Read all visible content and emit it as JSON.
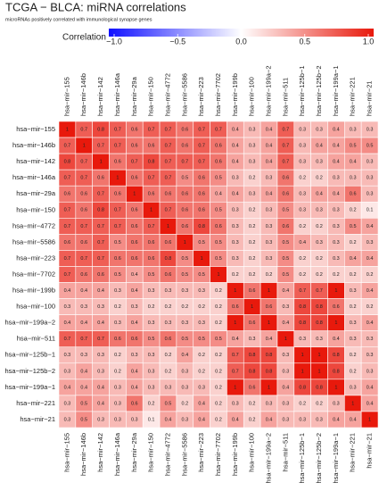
{
  "chart_data": {
    "type": "heatmap",
    "title": "TCGA − BLCA: miRNA correlations",
    "subtitle": "microRNAs positively correlated with immunological synapse genes",
    "legend_title": "Correlation",
    "colorscale": [
      "#1010ff",
      "#ffffff",
      "#e8190c"
    ],
    "clim": [
      -1,
      1
    ],
    "cticks": [
      {
        "value": -1,
        "label": "−1.0"
      },
      {
        "value": -0.5,
        "label": "−0.5"
      },
      {
        "value": 0,
        "label": "0.0"
      },
      {
        "value": 0.5,
        "label": "0.5"
      },
      {
        "value": 1,
        "label": "1.0"
      }
    ],
    "categories": [
      "hsa−mir−155",
      "hsa−mir−146b",
      "hsa−mir−142",
      "hsa−mir−146a",
      "hsa−mir−29a",
      "hsa−mir−150",
      "hsa−mir−4772",
      "hsa−mir−5586",
      "hsa−mir−223",
      "hsa−mir−7702",
      "hsa−mir−199b",
      "hsa−mir−100",
      "hsa−mir−199a−2",
      "hsa−mir−511",
      "hsa−mir−125b−1",
      "hsa−mir−125b−2",
      "hsa−mir−199a−1",
      "hsa−mir−221",
      "hsa−mir−21"
    ],
    "values": [
      [
        1,
        0.7,
        0.8,
        0.7,
        0.6,
        0.7,
        0.7,
        0.6,
        0.7,
        0.7,
        0.4,
        0.3,
        0.4,
        0.7,
        0.3,
        0.3,
        0.4,
        0.3,
        0.3
      ],
      [
        0.7,
        1,
        0.7,
        0.7,
        0.6,
        0.6,
        0.7,
        0.6,
        0.7,
        0.6,
        0.4,
        0.3,
        0.4,
        0.7,
        0.3,
        0.4,
        0.4,
        0.5,
        0.5
      ],
      [
        0.8,
        0.7,
        1,
        0.6,
        0.7,
        0.8,
        0.7,
        0.7,
        0.7,
        0.6,
        0.4,
        0.3,
        0.4,
        0.7,
        0.3,
        0.3,
        0.4,
        0.4,
        0.3
      ],
      [
        0.7,
        0.7,
        0.6,
        1,
        0.6,
        0.7,
        0.7,
        0.5,
        0.6,
        0.5,
        0.3,
        0.2,
        0.3,
        0.6,
        0.2,
        0.2,
        0.3,
        0.3,
        0.3
      ],
      [
        0.6,
        0.6,
        0.7,
        0.6,
        1,
        0.6,
        0.6,
        0.6,
        0.6,
        0.4,
        0.4,
        0.3,
        0.4,
        0.6,
        0.3,
        0.4,
        0.4,
        0.6,
        0.3
      ],
      [
        0.7,
        0.6,
        0.8,
        0.7,
        0.6,
        1,
        0.7,
        0.6,
        0.6,
        0.5,
        0.3,
        0.2,
        0.3,
        0.5,
        0.3,
        0.3,
        0.3,
        0.2,
        0.1
      ],
      [
        0.7,
        0.7,
        0.7,
        0.7,
        0.6,
        0.7,
        1,
        0.6,
        0.8,
        0.6,
        0.3,
        0.2,
        0.3,
        0.6,
        0.2,
        0.2,
        0.3,
        0.5,
        0.4
      ],
      [
        0.6,
        0.6,
        0.7,
        0.5,
        0.6,
        0.6,
        0.6,
        1,
        0.5,
        0.5,
        0.3,
        0.2,
        0.3,
        0.5,
        0.4,
        0.3,
        0.3,
        0.2,
        0.3
      ],
      [
        0.7,
        0.7,
        0.7,
        0.6,
        0.6,
        0.6,
        0.8,
        0.5,
        1,
        0.5,
        0.3,
        0.2,
        0.3,
        0.5,
        0.2,
        0.2,
        0.3,
        0.4,
        0.4
      ],
      [
        0.7,
        0.6,
        0.6,
        0.5,
        0.4,
        0.5,
        0.6,
        0.5,
        0.5,
        1,
        0.2,
        0.2,
        0.2,
        0.5,
        0.2,
        0.2,
        0.2,
        0.2,
        0.2
      ],
      [
        0.4,
        0.4,
        0.4,
        0.3,
        0.4,
        0.3,
        0.3,
        0.3,
        0.3,
        0.2,
        1,
        0.6,
        1,
        0.4,
        0.7,
        0.7,
        1,
        0.3,
        0.4
      ],
      [
        0.3,
        0.3,
        0.3,
        0.2,
        0.3,
        0.2,
        0.2,
        0.2,
        0.2,
        0.2,
        0.6,
        1,
        0.6,
        0.3,
        0.8,
        0.8,
        0.6,
        0.2,
        0.2
      ],
      [
        0.4,
        0.4,
        0.4,
        0.3,
        0.4,
        0.3,
        0.3,
        0.3,
        0.3,
        0.2,
        1,
        0.6,
        1,
        0.4,
        0.8,
        0.8,
        1,
        0.3,
        0.4
      ],
      [
        0.7,
        0.7,
        0.7,
        0.6,
        0.6,
        0.5,
        0.6,
        0.5,
        0.5,
        0.5,
        0.4,
        0.3,
        0.4,
        1,
        0.3,
        0.3,
        0.4,
        0.3,
        0.3
      ],
      [
        0.3,
        0.3,
        0.3,
        0.2,
        0.3,
        0.3,
        0.2,
        0.4,
        0.2,
        0.2,
        0.7,
        0.8,
        0.8,
        0.3,
        1,
        1,
        0.8,
        0.2,
        0.3
      ],
      [
        0.3,
        0.4,
        0.3,
        0.2,
        0.4,
        0.3,
        0.2,
        0.3,
        0.2,
        0.2,
        0.7,
        0.8,
        0.8,
        0.3,
        1,
        1,
        0.8,
        0.2,
        0.3
      ],
      [
        0.4,
        0.4,
        0.4,
        0.3,
        0.4,
        0.3,
        0.3,
        0.3,
        0.3,
        0.2,
        1,
        0.6,
        1,
        0.4,
        0.8,
        0.8,
        1,
        0.3,
        0.4
      ],
      [
        0.3,
        0.5,
        0.4,
        0.3,
        0.6,
        0.2,
        0.5,
        0.2,
        0.4,
        0.2,
        0.3,
        0.2,
        0.3,
        0.3,
        0.2,
        0.2,
        0.3,
        1,
        0.4
      ],
      [
        0.3,
        0.5,
        0.3,
        0.3,
        0.3,
        0.1,
        0.4,
        0.3,
        0.4,
        0.2,
        0.4,
        0.2,
        0.4,
        0.3,
        0.3,
        0.3,
        0.4,
        0.4,
        1
      ]
    ]
  }
}
